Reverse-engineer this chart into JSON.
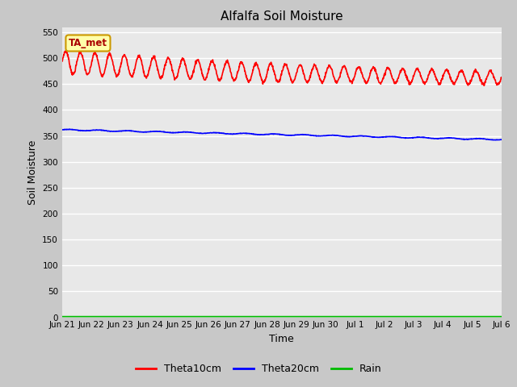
{
  "title": "Alfalfa Soil Moisture",
  "xlabel": "Time",
  "ylabel": "Soil Moisture",
  "ylim": [
    0,
    560
  ],
  "yticks": [
    0,
    50,
    100,
    150,
    200,
    250,
    300,
    350,
    400,
    450,
    500,
    550
  ],
  "xtick_labels": [
    "Jun 21",
    "Jun 22",
    "Jun 23",
    "Jun 24",
    "Jun 25",
    "Jun 26",
    "Jun 27",
    "Jun 28",
    "Jun 29",
    "Jun 30",
    "Jul 1",
    "Jul 2",
    "Jul 3",
    "Jul 4",
    "Jul 5",
    "Jul 6"
  ],
  "n_points": 1500,
  "theta10_color": "#ff0000",
  "theta20_color": "#0000ff",
  "rain_color": "#00bb00",
  "figure_bg": "#c8c8c8",
  "plot_bg": "#e8e8e8",
  "annotation_text": "TA_met",
  "annotation_fg": "#aa0000",
  "annotation_bg": "#ffffaa",
  "annotation_border": "#cc9900",
  "legend_entries": [
    "Theta10cm",
    "Theta20cm",
    "Rain"
  ],
  "linewidth": 1.2
}
